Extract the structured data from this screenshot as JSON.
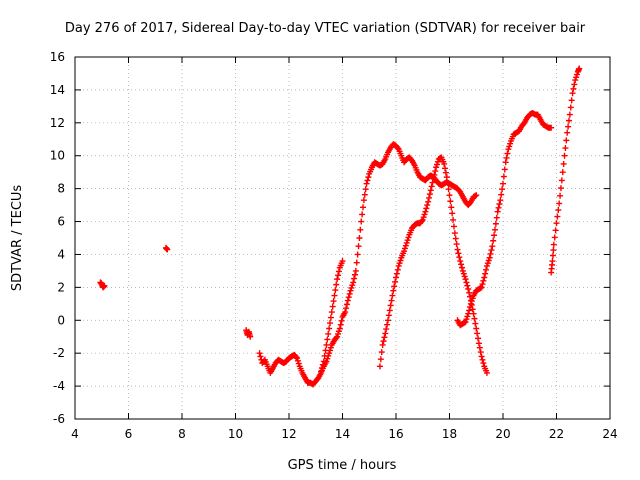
{
  "chart_data": {
    "type": "scatter",
    "title": "Day 276 of 2017, Sidereal Day-to-day VTEC variation (SDTVAR) for receiver bair",
    "xlabel": "GPS time / hours",
    "ylabel": "SDTVAR / TECUs",
    "xlim": [
      4,
      24
    ],
    "ylim": [
      -6,
      16
    ],
    "xticks": [
      "4",
      "6",
      "8",
      "10",
      "12",
      "14",
      "16",
      "18",
      "20",
      "22",
      "24"
    ],
    "yticks": [
      "-6",
      "-4",
      "-2",
      "0",
      "2",
      "4",
      "6",
      "8",
      "10",
      "12",
      "14",
      "16"
    ],
    "grid": true,
    "marker": "+",
    "color": "#ff0000",
    "series": [
      {
        "name": "s1",
        "x": [
          4.95,
          5.0,
          5.05,
          5.1
        ],
        "y": [
          2.3,
          2.2,
          2.0,
          2.1
        ]
      },
      {
        "name": "s2",
        "x": [
          7.4,
          7.45
        ],
        "y": [
          4.4,
          4.3
        ]
      },
      {
        "name": "s3",
        "x": [
          10.4,
          10.45,
          10.5,
          10.55
        ],
        "y": [
          -0.6,
          -0.9,
          -0.7,
          -1.0
        ]
      },
      {
        "name": "s4",
        "x": [
          10.9,
          11.0,
          11.1,
          11.2,
          11.3,
          11.4,
          11.5,
          11.6,
          11.7,
          11.8,
          11.9,
          12.0,
          12.1,
          12.2,
          12.3,
          12.4,
          12.5,
          12.6,
          12.7,
          12.8,
          12.9,
          13.0,
          13.1,
          13.2,
          13.3,
          13.4,
          13.5,
          13.6,
          13.7,
          13.8,
          13.9,
          14.0,
          14.1,
          14.2,
          14.3,
          14.4,
          14.5,
          14.6,
          14.7,
          14.8,
          14.9,
          15.0,
          15.1,
          15.2,
          15.3,
          15.4,
          15.5,
          15.6,
          15.7,
          15.8,
          15.9,
          16.0,
          16.1,
          16.2,
          16.3,
          16.4,
          16.5,
          16.6,
          16.7,
          16.8,
          16.9,
          17.0,
          17.1,
          17.2,
          17.3,
          17.4,
          17.5,
          17.6,
          17.7,
          17.8,
          17.9,
          18.0,
          18.1,
          18.2,
          18.3,
          18.4,
          18.5,
          18.6,
          18.7,
          18.8,
          18.9,
          19.0
        ],
        "y": [
          -2.0,
          -2.6,
          -2.4,
          -2.8,
          -3.2,
          -2.9,
          -2.6,
          -2.4,
          -2.5,
          -2.6,
          -2.5,
          -2.3,
          -2.2,
          -2.1,
          -2.3,
          -2.8,
          -3.2,
          -3.5,
          -3.8,
          -3.8,
          -3.9,
          -3.7,
          -3.5,
          -3.2,
          -2.8,
          -2.5,
          -2.0,
          -1.5,
          -1.2,
          -1.0,
          -0.5,
          0.2,
          0.5,
          1.2,
          1.8,
          2.3,
          3.0,
          4.5,
          6.0,
          7.3,
          8.3,
          8.9,
          9.3,
          9.6,
          9.5,
          9.4,
          9.5,
          9.8,
          10.2,
          10.5,
          10.7,
          10.6,
          10.4,
          10.0,
          9.6,
          9.8,
          9.9,
          9.7,
          9.4,
          9.0,
          8.7,
          8.6,
          8.5,
          8.7,
          8.8,
          8.7,
          8.5,
          8.3,
          8.2,
          8.3,
          8.4,
          8.3,
          8.2,
          8.1,
          8.0,
          7.8,
          7.5,
          7.2,
          7.0,
          7.2,
          7.5,
          7.6
        ]
      },
      {
        "name": "s5",
        "x": [
          13.2,
          13.3,
          13.4,
          13.5,
          13.6,
          13.7,
          13.8,
          13.9,
          14.0
        ],
        "y": [
          -3.1,
          -2.5,
          -1.5,
          -0.5,
          0.5,
          1.5,
          2.5,
          3.2,
          3.6
        ]
      },
      {
        "name": "s6",
        "x": [
          15.4,
          15.5,
          15.6,
          15.7,
          15.8,
          15.9,
          16.0,
          16.1,
          16.2,
          16.3,
          16.4,
          16.5,
          16.6,
          16.7,
          16.8,
          16.9,
          17.0,
          17.1,
          17.2,
          17.3,
          17.4,
          17.5,
          17.6,
          17.7,
          17.8,
          17.9,
          18.0,
          18.1,
          18.2,
          18.3,
          18.4,
          18.5,
          18.6,
          18.7,
          18.8,
          18.9,
          19.0,
          19.1,
          19.2,
          19.3,
          19.4
        ],
        "y": [
          -2.8,
          -1.5,
          -0.8,
          0.0,
          0.9,
          1.8,
          2.6,
          3.3,
          3.8,
          4.2,
          4.7,
          5.2,
          5.6,
          5.8,
          5.9,
          5.9,
          6.1,
          6.6,
          7.2,
          7.9,
          8.6,
          9.3,
          9.8,
          9.9,
          9.5,
          8.7,
          7.6,
          6.5,
          5.3,
          4.3,
          3.6,
          3.0,
          2.5,
          1.9,
          1.2,
          0.4,
          -0.5,
          -1.4,
          -2.2,
          -2.8,
          -3.2
        ]
      },
      {
        "name": "s7",
        "x": [
          18.3,
          18.4,
          18.5,
          18.6,
          18.7,
          18.8,
          18.9,
          19.0,
          19.1,
          19.2,
          19.3,
          19.4,
          19.5,
          19.6,
          19.7,
          19.8,
          19.9,
          20.0,
          20.1,
          20.2,
          20.3,
          20.4,
          20.5,
          20.6,
          20.7,
          20.8,
          20.9,
          21.0,
          21.1,
          21.2,
          21.3,
          21.4,
          21.5,
          21.6,
          21.7,
          21.8
        ],
        "y": [
          0.0,
          -0.3,
          -0.2,
          -0.1,
          0.4,
          1.0,
          1.5,
          1.8,
          1.9,
          2.0,
          2.6,
          3.3,
          3.8,
          4.5,
          5.5,
          6.6,
          7.3,
          8.3,
          9.6,
          10.4,
          10.9,
          11.3,
          11.4,
          11.5,
          11.8,
          12.0,
          12.3,
          12.5,
          12.6,
          12.5,
          12.5,
          12.2,
          11.9,
          11.8,
          11.7,
          11.7
        ]
      },
      {
        "name": "s8",
        "x": [
          21.8,
          21.85,
          21.9,
          22.0,
          22.1,
          22.2,
          22.3,
          22.4,
          22.5,
          22.6,
          22.7,
          22.8,
          22.85
        ],
        "y": [
          2.9,
          3.6,
          4.6,
          5.9,
          7.1,
          8.5,
          10.0,
          11.4,
          12.5,
          13.8,
          14.6,
          15.1,
          15.3
        ]
      }
    ]
  }
}
